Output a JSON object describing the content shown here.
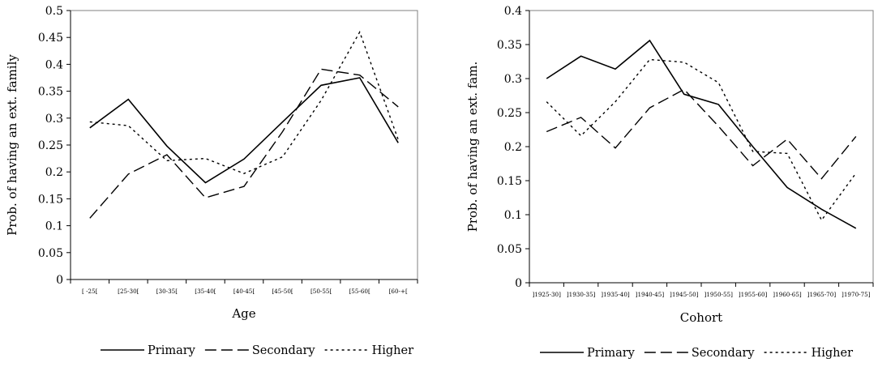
{
  "chart_data": [
    {
      "type": "line",
      "title": "",
      "xlabel": "Age",
      "ylabel": "Prob. of having an ext. family",
      "ylim": [
        0,
        0.5
      ],
      "yticks": [
        "0",
        "0.05",
        "0.1",
        "0.15",
        "0.2",
        "0.25",
        "0.3",
        "0.35",
        "0.4",
        "0.45",
        "0.5"
      ],
      "categories": [
        "[ -25[",
        "[25-30[",
        "[30-35[",
        "[35-40[",
        "[40-45[",
        "[45-50[",
        "[50-55[",
        "[55-60[",
        "[60-+["
      ],
      "grid": false,
      "legend_position": "bottom",
      "series": [
        {
          "name": "Primary",
          "style": "solid",
          "values": [
            0.282,
            0.335,
            0.248,
            0.18,
            0.224,
            0.293,
            0.361,
            0.375,
            0.254
          ]
        },
        {
          "name": "Secondary",
          "style": "dashed",
          "values": [
            0.114,
            0.196,
            0.232,
            0.152,
            0.173,
            0.275,
            0.391,
            0.38,
            0.321
          ]
        },
        {
          "name": "Higher",
          "style": "dotted",
          "values": [
            0.293,
            0.286,
            0.221,
            0.225,
            0.197,
            0.228,
            0.333,
            0.46,
            0.26
          ]
        }
      ]
    },
    {
      "type": "line",
      "title": "",
      "xlabel": "Cohort",
      "ylabel": "Prob. of having an ext. fam.",
      "ylim": [
        0,
        0.4
      ],
      "yticks": [
        "0",
        "0.05",
        "0.1",
        "0.15",
        "0.2",
        "0.25",
        "0.3",
        "0.35",
        "0.4"
      ],
      "categories": [
        "]1925-30]",
        "]1930-35]",
        "]1935-40]",
        "]1940-45]",
        "]1945-50]",
        "]1950-55]",
        "]1955-60]",
        "]1960-65]",
        "]1965-70]",
        "]1970-75]"
      ],
      "grid": false,
      "legend_position": "bottom",
      "series": [
        {
          "name": "Primary",
          "style": "solid",
          "values": [
            0.3,
            0.333,
            0.314,
            0.356,
            0.277,
            0.262,
            0.2,
            0.14,
            0.108,
            0.08
          ]
        },
        {
          "name": "Secondary",
          "style": "dashed",
          "values": [
            0.222,
            0.243,
            0.198,
            0.257,
            0.284,
            0.23,
            0.172,
            0.211,
            0.153,
            0.215
          ]
        },
        {
          "name": "Higher",
          "style": "dotted",
          "values": [
            0.266,
            0.216,
            0.266,
            0.328,
            0.324,
            0.294,
            0.193,
            0.19,
            0.092,
            0.161
          ]
        }
      ]
    }
  ]
}
